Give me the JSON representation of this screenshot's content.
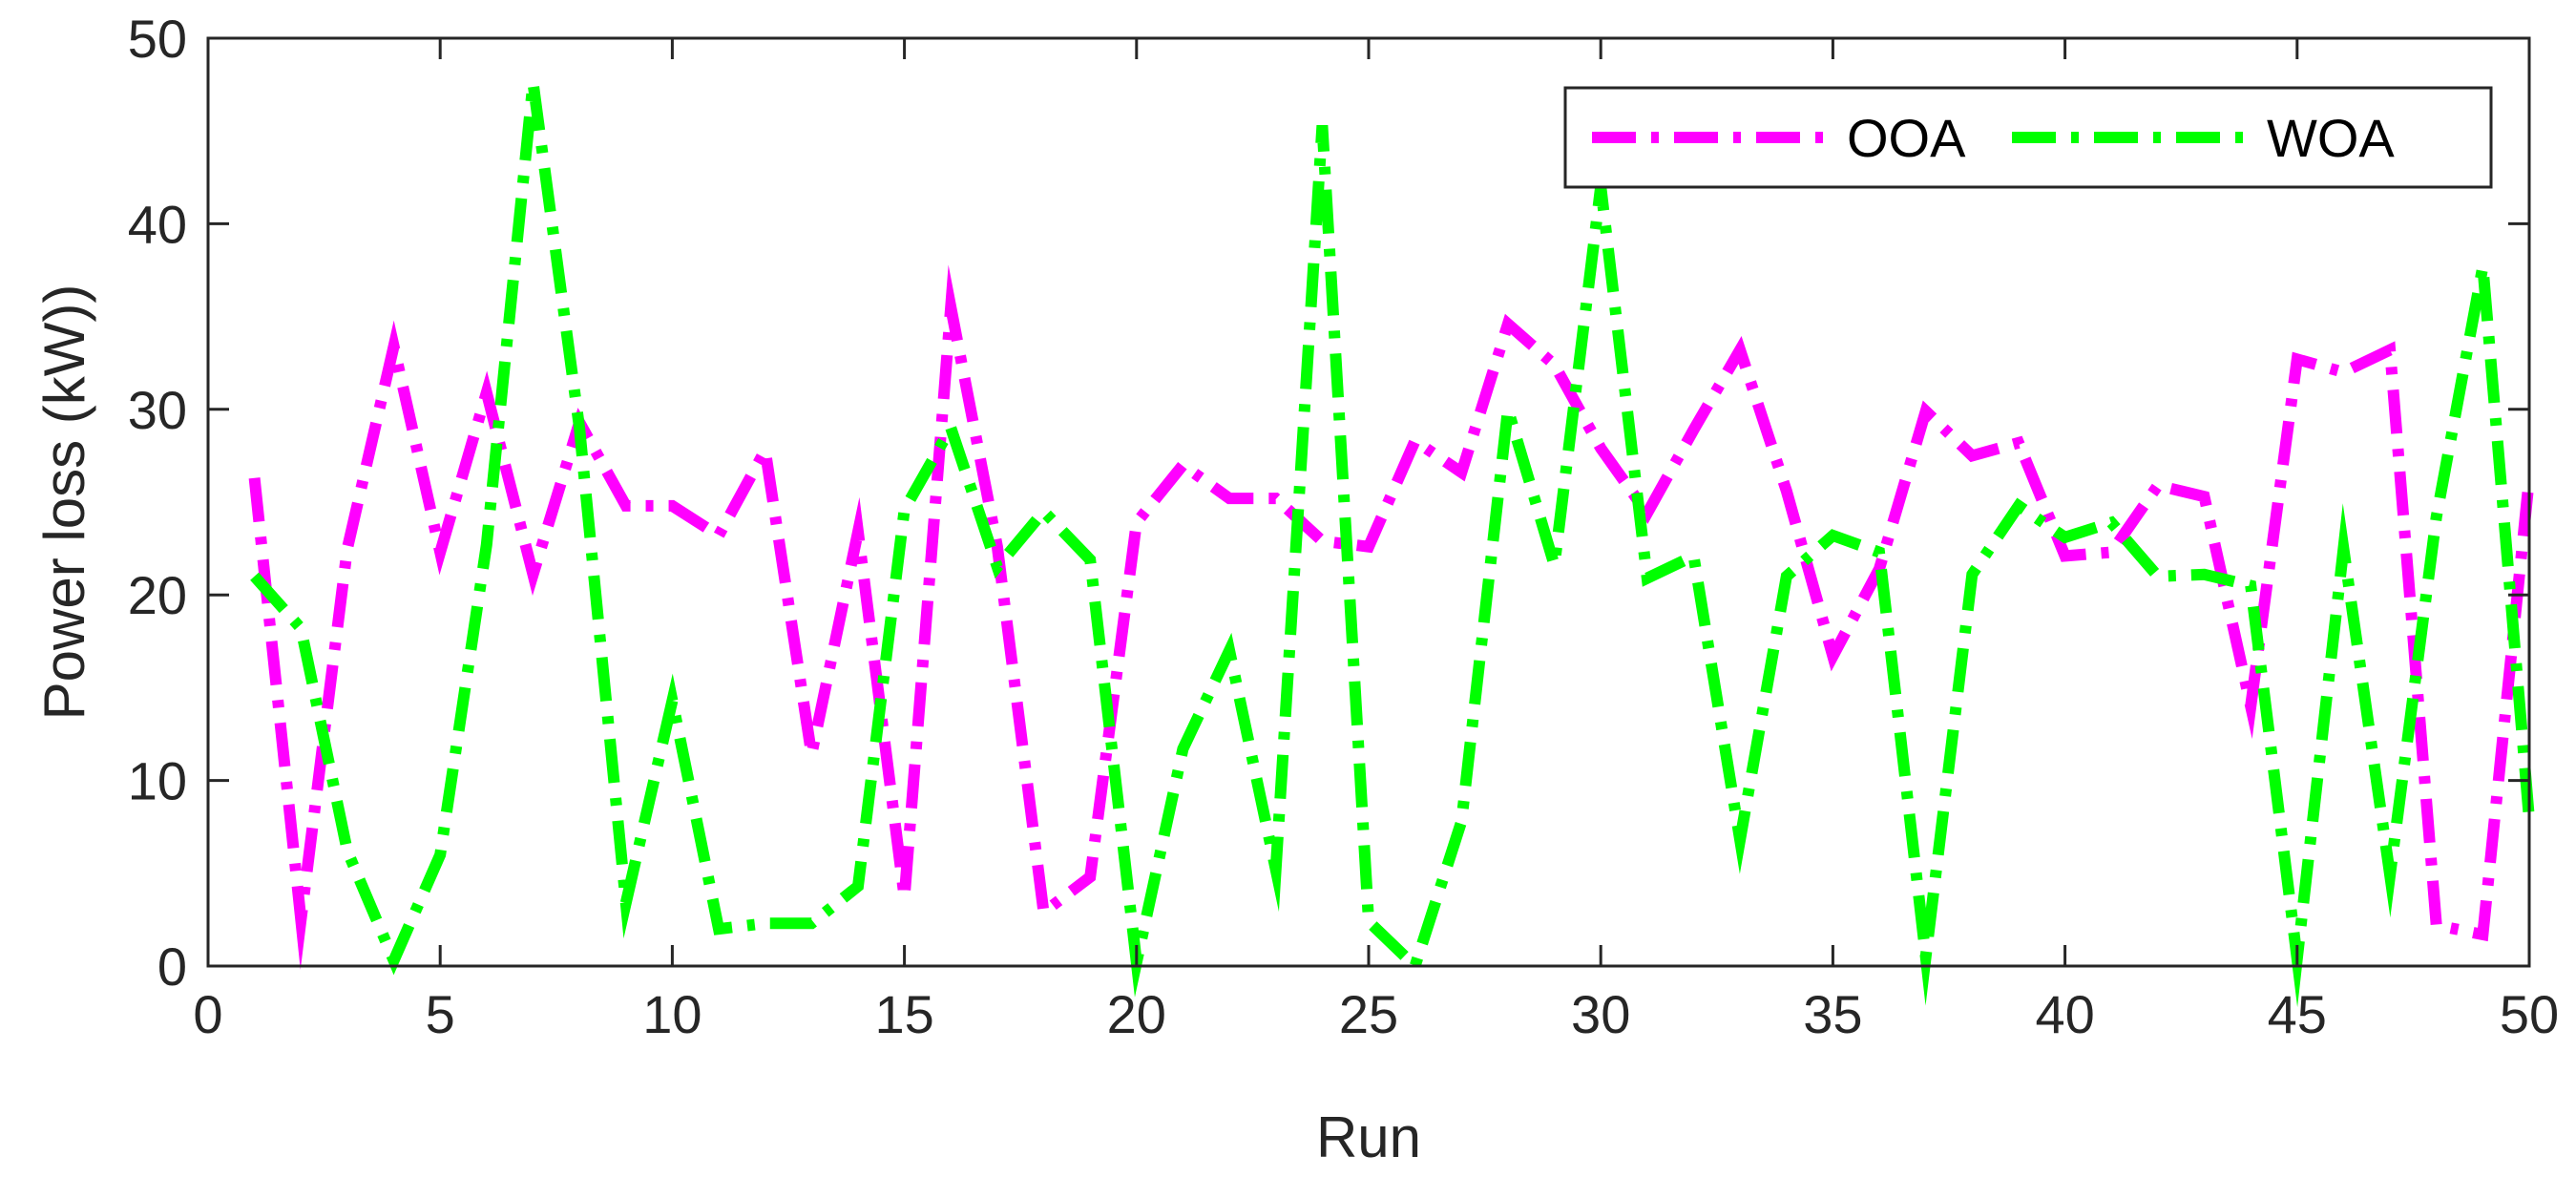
{
  "chart_data": {
    "type": "line",
    "title": "",
    "xlabel": "Run",
    "ylabel": "Power loss (kW))",
    "xlim": [
      0,
      50
    ],
    "ylim": [
      0,
      50
    ],
    "xticks": [
      0,
      5,
      10,
      15,
      20,
      25,
      30,
      35,
      40,
      45,
      50
    ],
    "yticks": [
      0,
      10,
      20,
      30,
      40,
      50
    ],
    "grid": false,
    "legend_position": "top-right",
    "x": [
      1,
      2,
      3,
      4,
      5,
      6,
      7,
      8,
      9,
      10,
      11,
      12,
      13,
      14,
      15,
      16,
      17,
      18,
      19,
      20,
      21,
      22,
      23,
      24,
      25,
      26,
      27,
      28,
      29,
      30,
      31,
      32,
      33,
      34,
      35,
      36,
      37,
      38,
      39,
      40,
      41,
      42,
      43,
      44,
      45,
      46,
      47,
      48,
      49,
      50
    ],
    "series": [
      {
        "name": "OOA",
        "color": "#ff00ff",
        "values": [
          26.3,
          2.5,
          22.5,
          33.4,
          22.3,
          30.9,
          21.1,
          29.3,
          24.8,
          24.8,
          23.2,
          27.8,
          11.4,
          23.4,
          3.7,
          35.5,
          22.6,
          2.9,
          4.8,
          23.9,
          27.0,
          25.2,
          25.2,
          22.9,
          22.6,
          28.3,
          26.6,
          34.6,
          32.4,
          27.9,
          24.4,
          28.9,
          33.2,
          25.6,
          16.7,
          21.4,
          29.9,
          27.5,
          28.2,
          22.1,
          22.3,
          25.9,
          25.3,
          14.0,
          32.7,
          32.0,
          33.2,
          2.2,
          1.7,
          26.3
        ]
      },
      {
        "name": "WOA",
        "color": "#00ff00",
        "values": [
          21.0,
          18.2,
          6.2,
          0.3,
          6.0,
          22.7,
          47.6,
          29.0,
          3.4,
          14.3,
          2.0,
          2.3,
          2.3,
          4.3,
          24.6,
          29.0,
          21.5,
          24.5,
          21.9,
          0.2,
          11.7,
          17.0,
          5.2,
          45.3,
          2.4,
          0.0,
          7.8,
          30.0,
          21.6,
          42.0,
          20.9,
          22.1,
          6.8,
          21.0,
          23.2,
          22.3,
          0.5,
          21.1,
          24.8,
          23.1,
          23.9,
          21.0,
          21.1,
          20.5,
          0.4,
          22.5,
          4.9,
          24.2,
          37.7,
          7.9
        ]
      }
    ]
  }
}
